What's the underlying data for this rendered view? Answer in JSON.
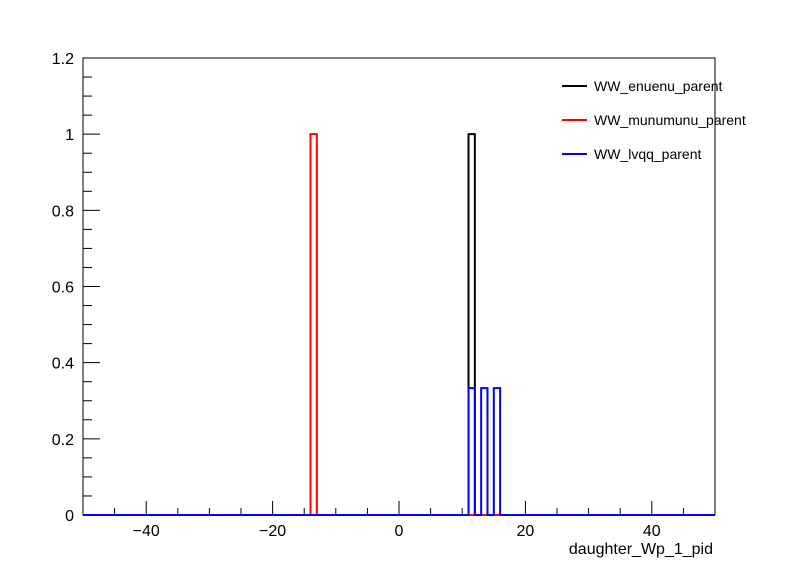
{
  "chart_data": {
    "type": "histogram",
    "title": "",
    "xlabel": "daughter_Wp_1_pid",
    "ylabel": "",
    "xlim": [
      -50,
      50
    ],
    "ylim": [
      0,
      1.2
    ],
    "bin_width": 1,
    "x_ticks": [
      -40,
      -20,
      0,
      20,
      40
    ],
    "x_tick_labels": [
      "−40",
      "−20",
      "0",
      "20",
      "40"
    ],
    "y_ticks": [
      0,
      0.2,
      0.4,
      0.6,
      0.8,
      1,
      1.2
    ],
    "y_tick_labels": [
      "0",
      "0.2",
      "0.4",
      "0.6",
      "0.8",
      "1",
      "1.2"
    ],
    "legend_position": "top-right",
    "grid": false,
    "series": [
      {
        "name": "WW_enuenu_parent",
        "color": "#000000",
        "bins": [
          {
            "x": 11,
            "value": 1
          }
        ]
      },
      {
        "name": "WW_munumunu_parent",
        "color": "#ff0000",
        "bins": [
          {
            "x": -14,
            "value": 1
          }
        ]
      },
      {
        "name": "WW_lvqq_parent",
        "color": "#0000ff",
        "bins": [
          {
            "x": 11,
            "value": 0.333
          },
          {
            "x": 13,
            "value": 0.333
          },
          {
            "x": 15,
            "value": 0.333
          }
        ]
      }
    ]
  }
}
